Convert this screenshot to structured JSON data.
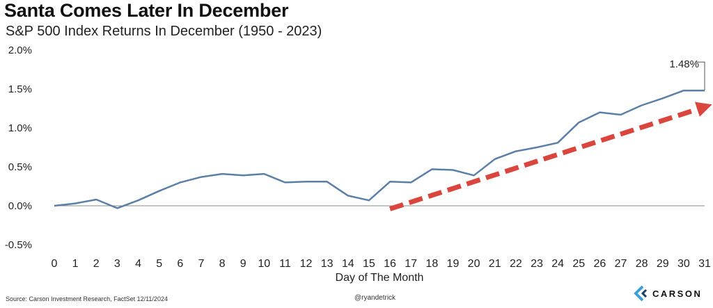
{
  "chart_data": {
    "type": "line",
    "title": "Santa Comes Later In December",
    "subtitle": "S&P 500 Index Returns In December (1950 - 2023)",
    "xlabel": "Day of The Month",
    "ylabel": "",
    "x": [
      0,
      1,
      2,
      3,
      4,
      5,
      6,
      7,
      8,
      9,
      10,
      11,
      12,
      13,
      14,
      15,
      16,
      17,
      18,
      19,
      20,
      21,
      22,
      23,
      24,
      25,
      26,
      27,
      28,
      29,
      30,
      31
    ],
    "y_tick_labels": [
      "2.0%",
      "1.5%",
      "1.0%",
      "0.5%",
      "0.0%",
      "-0.5%"
    ],
    "y_tick_values": [
      2.0,
      1.5,
      1.0,
      0.5,
      0.0,
      -0.5
    ],
    "ylim": [
      -0.5,
      2.0
    ],
    "series": [
      {
        "values": [
          0.0,
          0.03,
          0.08,
          -0.03,
          0.07,
          0.19,
          0.3,
          0.37,
          0.41,
          0.39,
          0.41,
          0.3,
          0.31,
          0.31,
          0.13,
          0.07,
          0.31,
          0.3,
          0.47,
          0.46,
          0.39,
          0.6,
          0.7,
          0.75,
          0.81,
          1.07,
          1.2,
          1.17,
          1.29,
          1.38,
          1.48,
          1.48
        ],
        "color": "#5b7fa6"
      }
    ],
    "annotation": {
      "text": "1.48%",
      "x": 31,
      "y": 1.48
    },
    "trend_arrow": {
      "from": [
        16,
        -0.04
      ],
      "to": [
        31,
        1.27
      ],
      "color": "#d9463e",
      "style": "dashed"
    },
    "grid": false,
    "zero_line": true,
    "legend": "none"
  },
  "footer": {
    "source": "Source: Carson Investment Research, FactSet 12/11/2024",
    "handle": "@ryandetrick",
    "brand": "CARSON"
  },
  "colors": {
    "line": "#5b7fa6",
    "arrow": "#d9463e",
    "brand_accent": "#3a9fd6"
  }
}
